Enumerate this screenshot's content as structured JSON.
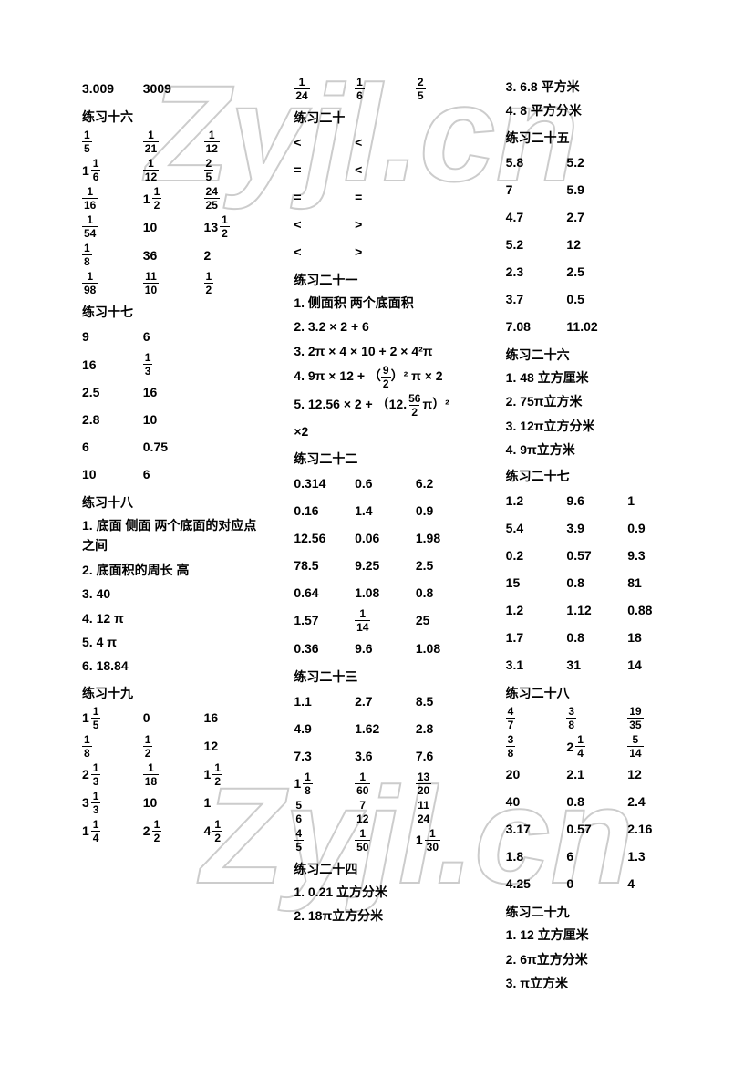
{
  "watermark": "Zyjl.cn",
  "col1": {
    "top": [
      [
        "3.009",
        "3009",
        ""
      ]
    ],
    "s16": {
      "title": "练习十六",
      "rows": [
        [
          "1/5",
          "1/21",
          "1/12"
        ],
        [
          "1_1/6",
          "1/12",
          "2/5"
        ],
        [
          "1/16",
          "1_1/2",
          "24/25"
        ],
        [
          "1/54",
          "10",
          "13_1/2"
        ],
        [
          "1/8",
          "36",
          "2"
        ],
        [
          "1/98",
          "11/10",
          "1/2"
        ]
      ]
    },
    "s17": {
      "title": "练习十七",
      "rows": [
        [
          "9",
          "6"
        ],
        [
          "16",
          "1/3"
        ],
        [
          "2.5",
          "16"
        ],
        [
          "2.8",
          "10"
        ],
        [
          "6",
          "0.75"
        ],
        [
          "10",
          "6"
        ]
      ]
    },
    "s18": {
      "title": "练习十八",
      "lines": [
        "1.  底面    侧面    两个底面的对应点之间",
        "2.  底面积的周长        高",
        "3.  40",
        "4.  12 π",
        "5.  4 π",
        "6.  18.84"
      ]
    },
    "s19": {
      "title": "练习十九",
      "rows": [
        [
          "1_1/5",
          "0",
          "16"
        ],
        [
          "1/8",
          "1/2",
          "12"
        ],
        [
          "2_1/3",
          "1/18",
          "1_1/2"
        ],
        [
          "3_1/3",
          "10",
          "1"
        ],
        [
          "1_1/4",
          "2_1/2",
          "4_1/2"
        ]
      ]
    }
  },
  "col2": {
    "top": [
      [
        "1/24",
        "1/6",
        "2/5"
      ]
    ],
    "s20": {
      "title": "练习二十",
      "rows": [
        [
          "<",
          "<"
        ],
        [
          "=",
          "<"
        ],
        [
          "=",
          "="
        ],
        [
          "<",
          ">"
        ],
        [
          "<",
          ">"
        ]
      ]
    },
    "s21": {
      "title": "练习二十一",
      "lines": [
        "1.    侧面积    两个底面积",
        "2.    3.2 × 2 + 6",
        "3.    2π × 4 × 10 + 2 × 4²π",
        "4.    9π × 12 + （9/2）² π × 2",
        "5.    12.56 × 2 + （12.56/2π）²",
        "×2"
      ]
    },
    "s22": {
      "title": "练习二十二",
      "rows": [
        [
          "0.314",
          "0.6",
          "6.2"
        ],
        [
          "0.16",
          "1.4",
          "0.9"
        ],
        [
          "12.56",
          "0.06",
          "1.98"
        ],
        [
          "78.5",
          "9.25",
          "2.5"
        ],
        [
          "0.64",
          "1.08",
          "0.8"
        ],
        [
          "1.57",
          "1/14",
          "25"
        ],
        [
          "0.36",
          "9.6",
          "1.08"
        ]
      ]
    },
    "s23": {
      "title": "练习二十三",
      "rows": [
        [
          "1.1",
          "2.7",
          "8.5"
        ],
        [
          "4.9",
          "1.62",
          "2.8"
        ],
        [
          "7.3",
          "3.6",
          "7.6"
        ],
        [
          "1_1/8",
          "1/60",
          "13/20"
        ],
        [
          "5/6",
          "7/12",
          "11/24"
        ],
        [
          "4/5",
          "1/50",
          "1_1/30"
        ]
      ]
    },
    "s24": {
      "title": "练习二十四",
      "lines": [
        "1.  0.21 立方分米",
        "2.  18π立方分米"
      ]
    }
  },
  "col3": {
    "top": [
      "3.  6.8 平方米",
      "4.  8 平方分米"
    ],
    "s25": {
      "title": "练习二十五",
      "rows": [
        [
          "5.8",
          "5.2"
        ],
        [
          "7",
          "5.9"
        ],
        [
          "4.7",
          "2.7"
        ],
        [
          "5.2",
          "12"
        ],
        [
          "2.3",
          "2.5"
        ],
        [
          "3.7",
          "0.5"
        ],
        [
          "7.08",
          "11.02"
        ]
      ]
    },
    "s26": {
      "title": "练习二十六",
      "lines": [
        "1.  48 立方厘米",
        "2.  75π立方米",
        "3.  12π立方分米",
        "4.  9π立方米"
      ]
    },
    "s27": {
      "title": "练习二十七",
      "rows": [
        [
          "1.2",
          "9.6",
          "1"
        ],
        [
          "5.4",
          "3.9",
          "0.9"
        ],
        [
          "0.2",
          "0.57",
          "9.3"
        ],
        [
          "15",
          "0.8",
          "81"
        ],
        [
          "1.2",
          "1.12",
          "0.88"
        ],
        [
          "1.7",
          "0.8",
          "18"
        ],
        [
          "3.1",
          "31",
          "14"
        ]
      ]
    },
    "s28": {
      "title": "练习二十八",
      "rows": [
        [
          "4/7",
          "3/8",
          "19/35"
        ],
        [
          "3/8",
          "2_1/4",
          "5/14"
        ],
        [
          "20",
          "2.1",
          "12"
        ],
        [
          "40",
          "0.8",
          "2.4"
        ],
        [
          "3.17",
          "0.57",
          "2.16"
        ],
        [
          "1.8",
          "6",
          "1.3"
        ],
        [
          "4.25",
          "0",
          "4"
        ]
      ]
    },
    "s29": {
      "title": "练习二十九",
      "lines": [
        "1.  12 立方厘米",
        "2.  6π立方分米",
        "3.  π立方米"
      ]
    }
  }
}
